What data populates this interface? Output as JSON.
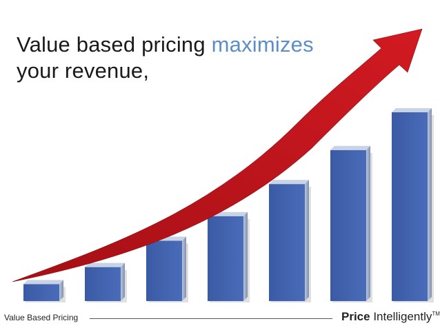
{
  "headline": {
    "part1": "Value based pricing ",
    "accent": "maximizes",
    "line2": "your revenue,",
    "accent_color": "#5b8ec9"
  },
  "graphic": {
    "bar_color": "#3f5ea8",
    "arrow_color": "#c0141c",
    "relative_bar_levels": [
      0.09,
      0.18,
      0.32,
      0.45,
      0.62,
      0.8,
      1.0
    ]
  },
  "footer": {
    "label": "Value Based Pricing",
    "brand_bold": "Price",
    "brand_regular": " Intelligently",
    "brand_mark": "TM"
  }
}
